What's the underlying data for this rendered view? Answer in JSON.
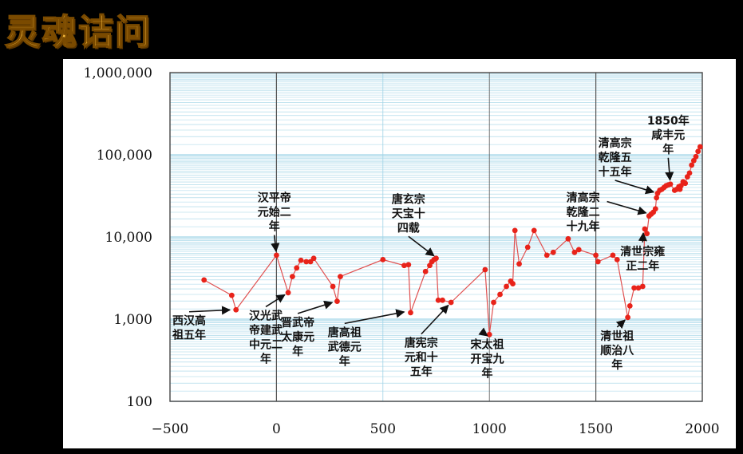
{
  "brand": {
    "label": "灵魂诘问"
  },
  "colors": {
    "series": "#e8231a",
    "line": "#e05050",
    "grid": "#9fd3e6",
    "frame": "#444444",
    "brand": "#f6b93b"
  },
  "chart_data": {
    "type": "line",
    "title": "",
    "xlabel": "",
    "ylabel": "",
    "xlim": [
      -500,
      2000
    ],
    "ylim": [
      100,
      1000000
    ],
    "yscale": "log",
    "grid": true,
    "x_ticks": [
      "−500",
      "0",
      "500",
      "1000",
      "1500",
      "2000"
    ],
    "y_ticks": [
      "100",
      "1,000",
      "10,000",
      "100,000",
      "1,000,000"
    ],
    "series": [
      {
        "points": [
          [
            -340,
            3000
          ],
          [
            -210,
            1950
          ],
          [
            -190,
            1300
          ],
          [
            0,
            6000
          ],
          [
            55,
            2100
          ],
          [
            75,
            3300
          ],
          [
            95,
            4200
          ],
          [
            115,
            5200
          ],
          [
            140,
            5000
          ],
          [
            160,
            5000
          ],
          [
            175,
            5500
          ],
          [
            265,
            2500
          ],
          [
            285,
            1650
          ],
          [
            300,
            3300
          ],
          [
            500,
            5300
          ],
          [
            600,
            4500
          ],
          [
            620,
            4600
          ],
          [
            630,
            1200
          ],
          [
            700,
            3800
          ],
          [
            720,
            4500
          ],
          [
            730,
            5000
          ],
          [
            740,
            5300
          ],
          [
            750,
            5500
          ],
          [
            760,
            1700
          ],
          [
            780,
            1700
          ],
          [
            820,
            1600
          ],
          [
            980,
            4000
          ],
          [
            1000,
            650
          ],
          [
            1020,
            1600
          ],
          [
            1050,
            2000
          ],
          [
            1080,
            2500
          ],
          [
            1100,
            2900
          ],
          [
            1110,
            2700
          ],
          [
            1120,
            12000
          ],
          [
            1140,
            4700
          ],
          [
            1180,
            7500
          ],
          [
            1210,
            12000
          ],
          [
            1270,
            6000
          ],
          [
            1300,
            6500
          ],
          [
            1370,
            9500
          ],
          [
            1400,
            6500
          ],
          [
            1420,
            7000
          ],
          [
            1500,
            6000
          ],
          [
            1510,
            5000
          ],
          [
            1580,
            6000
          ],
          [
            1600,
            5300
          ],
          [
            1650,
            1050
          ],
          [
            1660,
            1450
          ],
          [
            1680,
            2400
          ],
          [
            1700,
            2400
          ],
          [
            1720,
            2500
          ],
          [
            1730,
            12500
          ],
          [
            1740,
            11000
          ],
          [
            1750,
            18000
          ],
          [
            1760,
            19000
          ],
          [
            1770,
            20000
          ],
          [
            1780,
            22000
          ],
          [
            1785,
            30000
          ],
          [
            1790,
            34000
          ],
          [
            1800,
            37000
          ],
          [
            1810,
            38000
          ],
          [
            1820,
            40000
          ],
          [
            1830,
            42000
          ],
          [
            1840,
            43000
          ],
          [
            1850,
            44000
          ],
          [
            1870,
            37000
          ],
          [
            1880,
            38000
          ],
          [
            1890,
            41000
          ],
          [
            1895,
            38000
          ],
          [
            1900,
            42000
          ],
          [
            1910,
            47000
          ],
          [
            1920,
            45000
          ],
          [
            1930,
            54000
          ],
          [
            1940,
            60000
          ],
          [
            1950,
            75000
          ],
          [
            1960,
            85000
          ],
          [
            1970,
            95000
          ],
          [
            1980,
            110000
          ],
          [
            1990,
            125000
          ]
        ]
      }
    ],
    "annotations": [
      {
        "lines": [
          "西汉高",
          "祖五年"
        ],
        "point": [
          -200,
          1300
        ],
        "label_anchor": [
          -410,
          860
        ]
      },
      {
        "lines": [
          "汉平帝",
          "元始二",
          "年"
        ],
        "point": [
          0,
          6000
        ],
        "label_anchor": [
          -10,
          27000
        ]
      },
      {
        "lines": [
          "汉光武",
          "帝建武",
          "中元二",
          "年"
        ],
        "point": [
          55,
          2100
        ],
        "label_anchor": [
          -50,
          990
        ]
      },
      {
        "lines": [
          "晋武帝",
          "太康元",
          "年"
        ],
        "point": [
          280,
          1650
        ],
        "label_anchor": [
          100,
          820
        ]
      },
      {
        "lines": [
          "唐高祖",
          "武德元",
          "年"
        ],
        "point": [
          618,
          1250
        ],
        "label_anchor": [
          320,
          620
        ]
      },
      {
        "lines": [
          "唐玄宗",
          "天宝十",
          "四载"
        ],
        "point": [
          755,
          5500
        ],
        "label_anchor": [
          620,
          26000
        ]
      },
      {
        "lines": [
          "唐宪宗",
          "元和十",
          "五年"
        ],
        "point": [
          820,
          1600
        ],
        "label_anchor": [
          680,
          460
        ]
      },
      {
        "lines": [
          "宋太祖",
          "开宝九",
          "年"
        ],
        "point": [
          976,
          670
        ],
        "label_anchor": [
          990,
          440
        ]
      },
      {
        "lines": [
          "清世祖",
          "顺治八",
          "年"
        ],
        "point": [
          1651,
          1050
        ],
        "label_anchor": [
          1600,
          560
        ]
      },
      {
        "lines": [
          "清世宗雍",
          "正二年"
        ],
        "point": [
          1724,
          12500
        ],
        "label_anchor": [
          1720,
          6000
        ]
      },
      {
        "lines": [
          "清高宗",
          "乾隆二",
          "十九年"
        ],
        "point": [
          1754,
          19000
        ],
        "label_anchor": [
          1440,
          27000
        ]
      },
      {
        "lines": [
          "清高宗",
          "乾隆五",
          "十五年"
        ],
        "point": [
          1790,
          34000
        ],
        "label_anchor": [
          1590,
          125000
        ]
      },
      {
        "lines": [
          "1850年",
          "咸丰元",
          "年"
        ],
        "point": [
          1850,
          44000
        ],
        "label_anchor": [
          1840,
          235000
        ]
      }
    ]
  }
}
